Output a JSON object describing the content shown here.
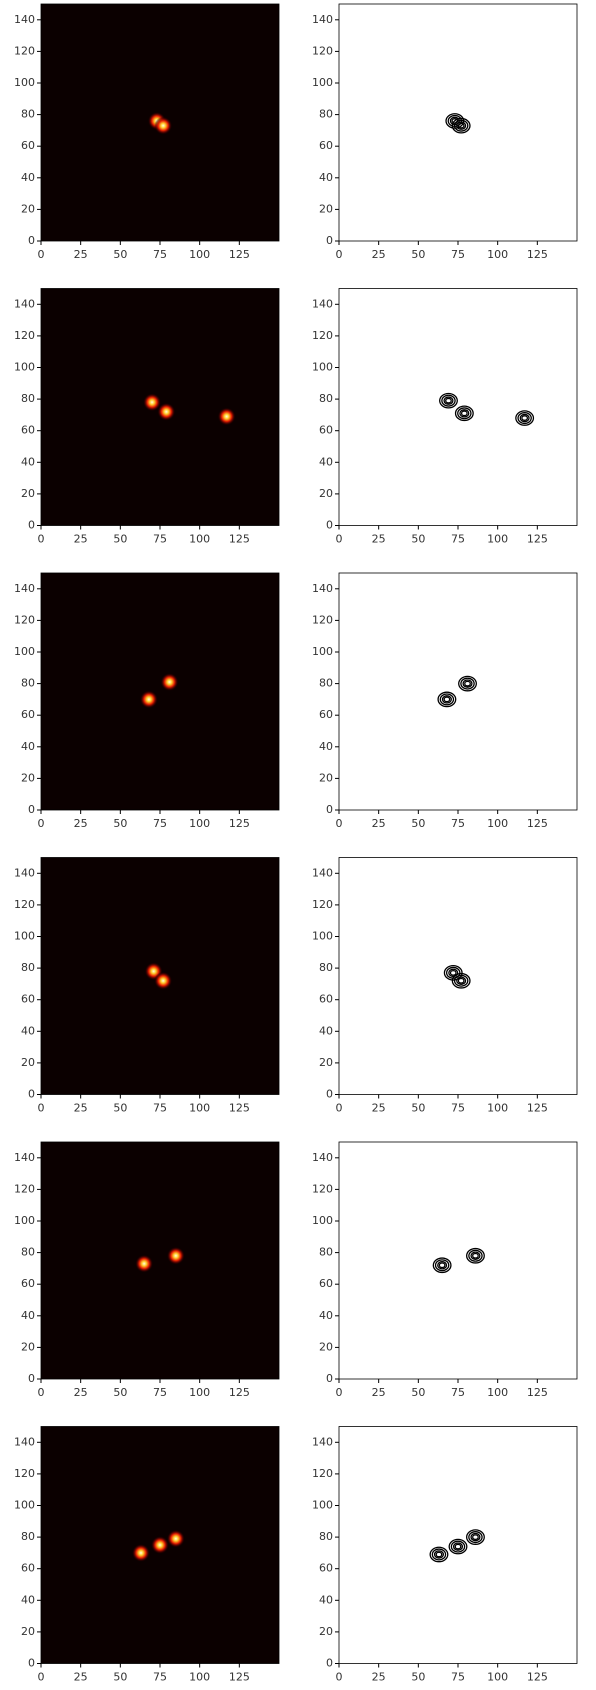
{
  "chart_data": [
    {
      "type": "heatmap",
      "x": [
        73,
        77
      ],
      "y": [
        76,
        73
      ],
      "xlim": [
        0,
        150
      ],
      "ylim": [
        0,
        150
      ],
      "xticks": [
        0,
        25,
        50,
        75,
        100,
        125
      ],
      "yticks": [
        0,
        20,
        40,
        60,
        80,
        100,
        120,
        140
      ]
    },
    {
      "type": "contour",
      "x": [
        73,
        77
      ],
      "y": [
        76,
        73
      ],
      "xlim": [
        0,
        150
      ],
      "ylim": [
        0,
        150
      ],
      "xticks": [
        0,
        25,
        50,
        75,
        100,
        125
      ],
      "yticks": [
        0,
        20,
        40,
        60,
        80,
        100,
        120,
        140
      ]
    },
    {
      "type": "heatmap",
      "x": [
        70,
        79,
        117
      ],
      "y": [
        78,
        72,
        69
      ],
      "xlim": [
        0,
        150
      ],
      "ylim": [
        0,
        150
      ],
      "xticks": [
        0,
        25,
        50,
        75,
        100,
        125
      ],
      "yticks": [
        0,
        20,
        40,
        60,
        80,
        100,
        120,
        140
      ]
    },
    {
      "type": "contour",
      "x": [
        69,
        79,
        117
      ],
      "y": [
        79,
        71,
        68
      ],
      "xlim": [
        0,
        150
      ],
      "ylim": [
        0,
        150
      ],
      "xticks": [
        0,
        25,
        50,
        75,
        100,
        125
      ],
      "yticks": [
        0,
        20,
        40,
        60,
        80,
        100,
        120,
        140
      ]
    },
    {
      "type": "heatmap",
      "x": [
        68,
        81
      ],
      "y": [
        70,
        81
      ],
      "xlim": [
        0,
        150
      ],
      "ylim": [
        0,
        150
      ],
      "xticks": [
        0,
        25,
        50,
        75,
        100,
        125
      ],
      "yticks": [
        0,
        20,
        40,
        60,
        80,
        100,
        120,
        140
      ]
    },
    {
      "type": "contour",
      "x": [
        68,
        81
      ],
      "y": [
        70,
        80
      ],
      "xlim": [
        0,
        150
      ],
      "ylim": [
        0,
        150
      ],
      "xticks": [
        0,
        25,
        50,
        75,
        100,
        125
      ],
      "yticks": [
        0,
        20,
        40,
        60,
        80,
        100,
        120,
        140
      ]
    },
    {
      "type": "heatmap",
      "x": [
        71,
        77
      ],
      "y": [
        78,
        72
      ],
      "xlim": [
        0,
        150
      ],
      "ylim": [
        0,
        150
      ],
      "xticks": [
        0,
        25,
        50,
        75,
        100,
        125
      ],
      "yticks": [
        0,
        20,
        40,
        60,
        80,
        100,
        120,
        140
      ]
    },
    {
      "type": "contour",
      "x": [
        72,
        77
      ],
      "y": [
        77,
        72
      ],
      "xlim": [
        0,
        150
      ],
      "ylim": [
        0,
        150
      ],
      "xticks": [
        0,
        25,
        50,
        75,
        100,
        125
      ],
      "yticks": [
        0,
        20,
        40,
        60,
        80,
        100,
        120,
        140
      ]
    },
    {
      "type": "heatmap",
      "x": [
        65,
        85
      ],
      "y": [
        73,
        78
      ],
      "xlim": [
        0,
        150
      ],
      "ylim": [
        0,
        150
      ],
      "xticks": [
        0,
        25,
        50,
        75,
        100,
        125
      ],
      "yticks": [
        0,
        20,
        40,
        60,
        80,
        100,
        120,
        140
      ]
    },
    {
      "type": "contour",
      "x": [
        65,
        86
      ],
      "y": [
        72,
        78
      ],
      "xlim": [
        0,
        150
      ],
      "ylim": [
        0,
        150
      ],
      "xticks": [
        0,
        25,
        50,
        75,
        100,
        125
      ],
      "yticks": [
        0,
        20,
        40,
        60,
        80,
        100,
        120,
        140
      ]
    },
    {
      "type": "heatmap",
      "x": [
        63,
        75,
        85
      ],
      "y": [
        70,
        75,
        79
      ],
      "xlim": [
        0,
        150
      ],
      "ylim": [
        0,
        150
      ],
      "xticks": [
        0,
        25,
        50,
        75,
        100,
        125
      ],
      "yticks": [
        0,
        20,
        40,
        60,
        80,
        100,
        120,
        140
      ]
    },
    {
      "type": "contour",
      "x": [
        63,
        75,
        86
      ],
      "y": [
        69,
        74,
        80
      ],
      "xlim": [
        0,
        150
      ],
      "ylim": [
        0,
        150
      ],
      "xticks": [
        0,
        25,
        50,
        75,
        100,
        125
      ],
      "yticks": [
        0,
        20,
        40,
        60,
        80,
        100,
        120,
        140
      ]
    }
  ]
}
